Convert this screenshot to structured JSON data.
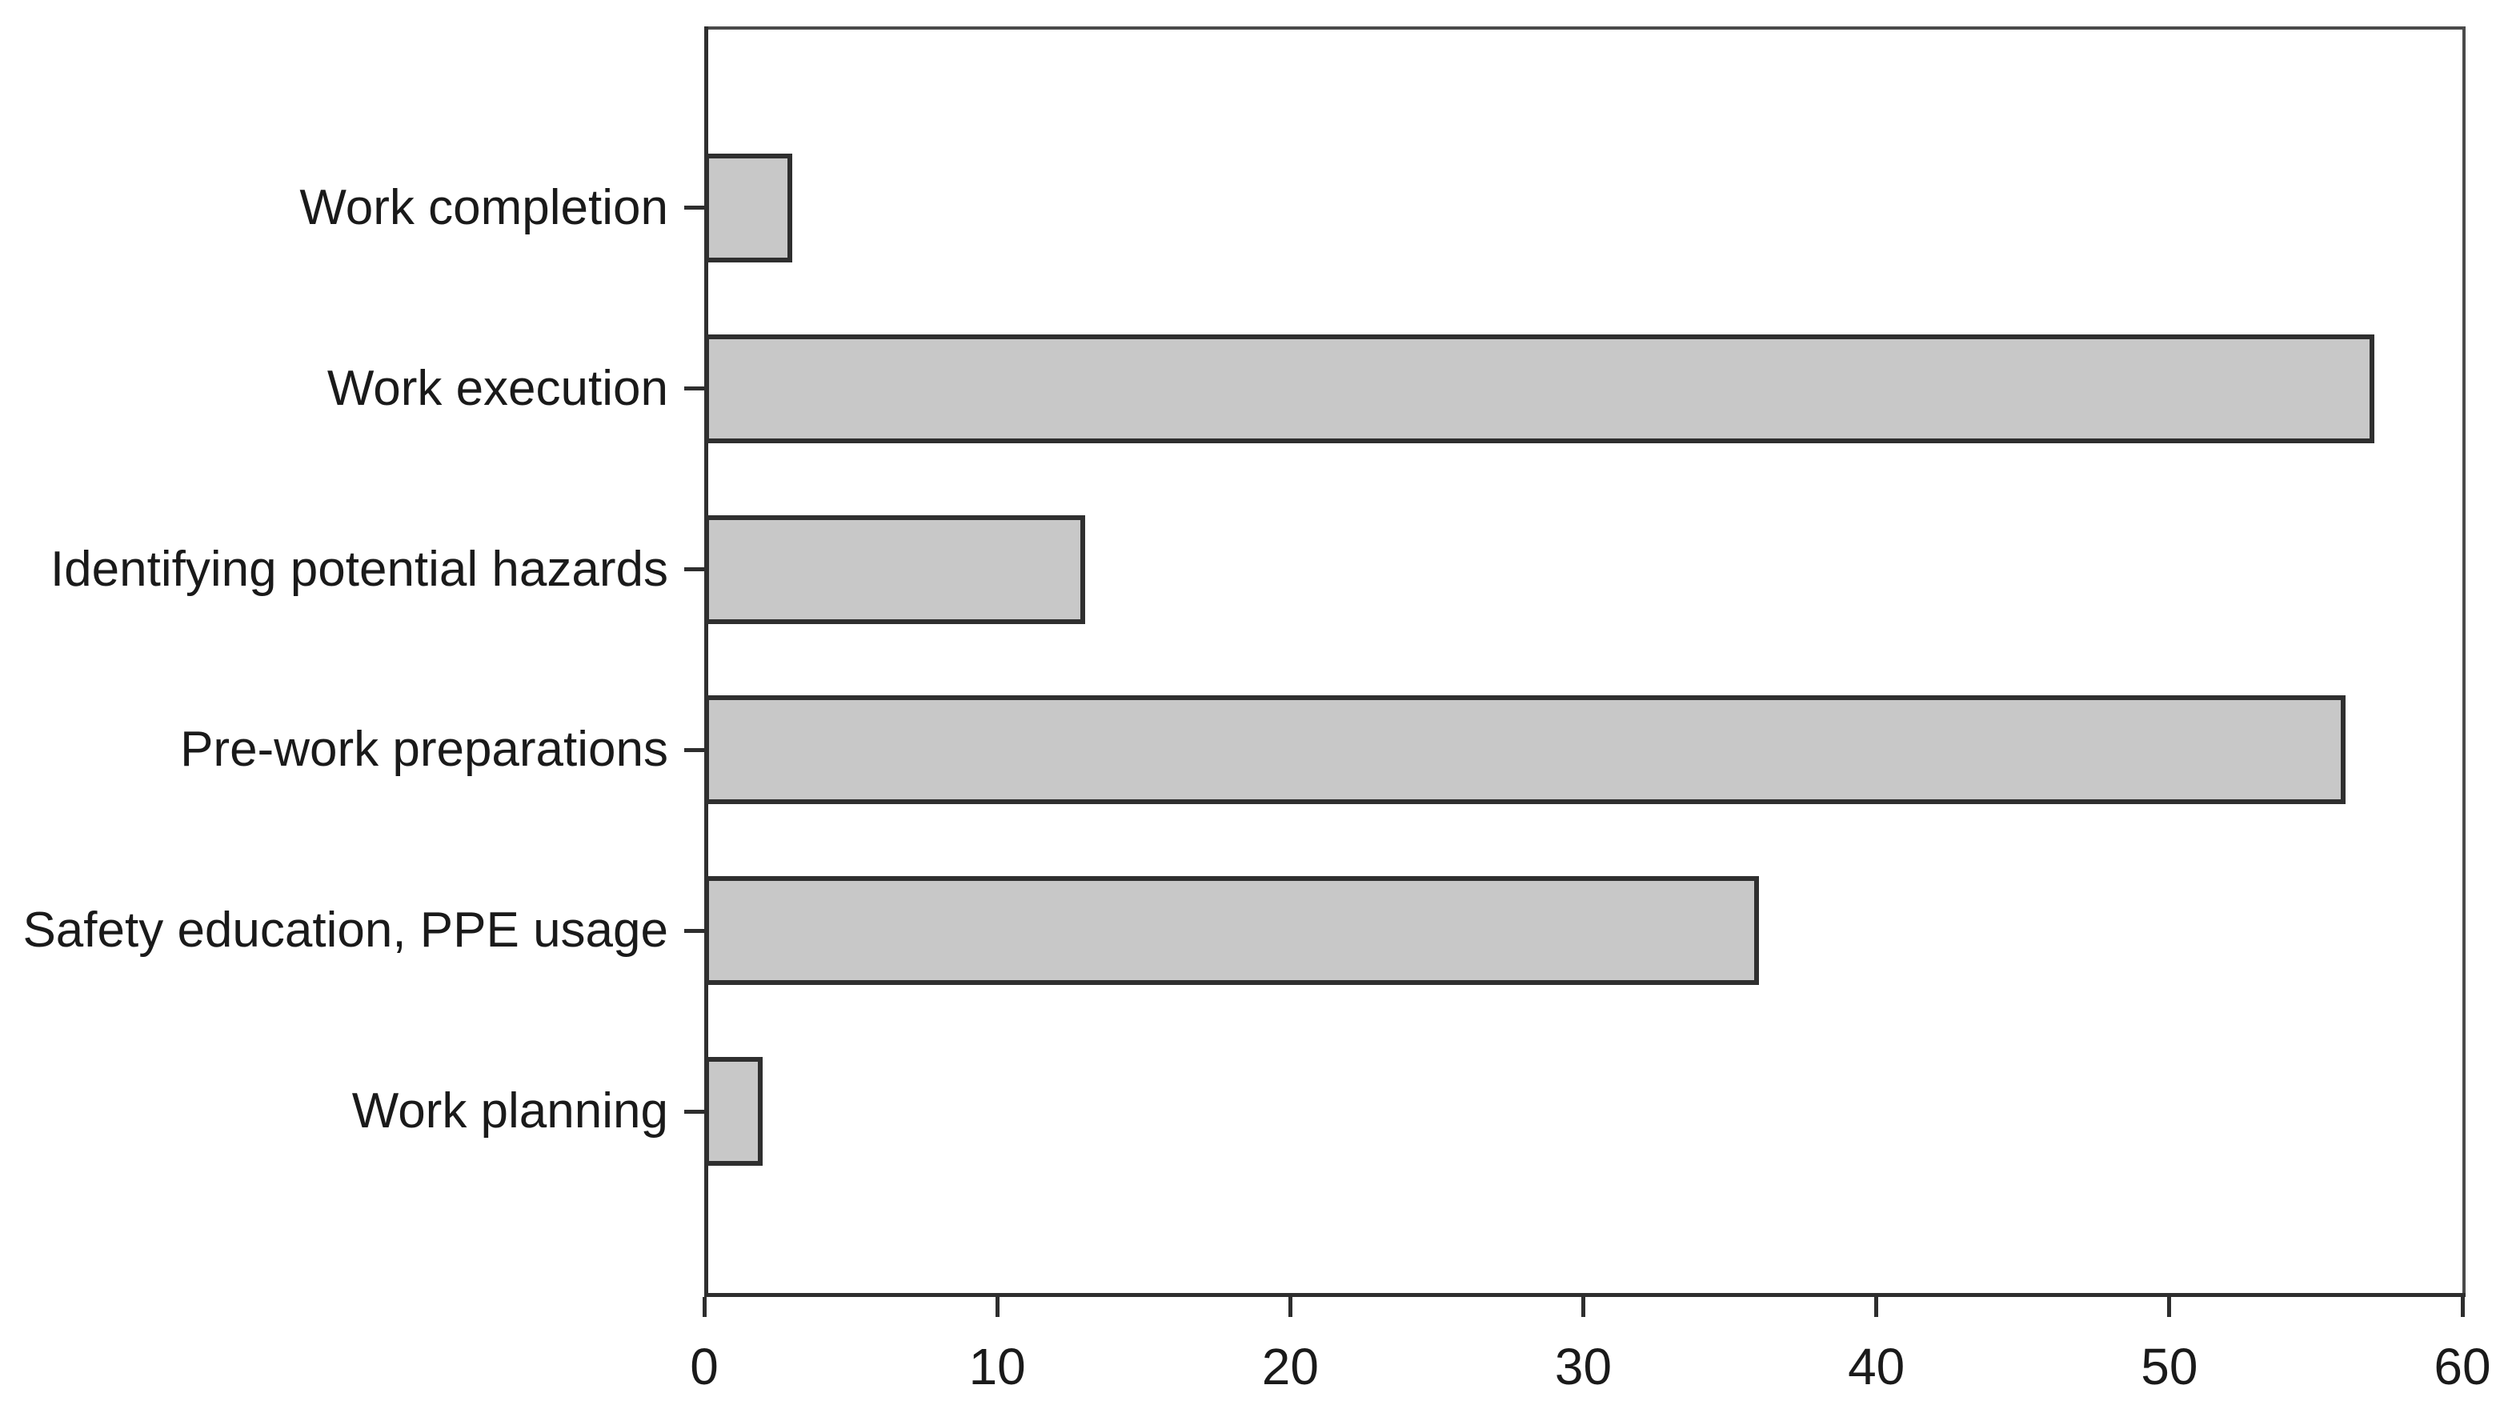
{
  "chart_data": {
    "type": "bar",
    "orientation": "horizontal",
    "title": "",
    "xlabel": "",
    "ylabel": "",
    "categories": [
      "Work completion",
      "Work execution",
      "Identifying potential hazards",
      "Pre-work preparations",
      "Safety education, PPE usage",
      "Work planning"
    ],
    "values": [
      3,
      57,
      13,
      56,
      36,
      2
    ],
    "xlim": [
      0,
      60
    ],
    "xticks": [
      0,
      10,
      20,
      30,
      40,
      50,
      60
    ],
    "grid": false,
    "legend": null,
    "bar_fill_color": "#c8c8c8",
    "bar_border_color": "#2f2f2f",
    "axis_color": "#2e2e2e",
    "text_color": "#1a1a1a",
    "background_color": "#ffffff"
  }
}
